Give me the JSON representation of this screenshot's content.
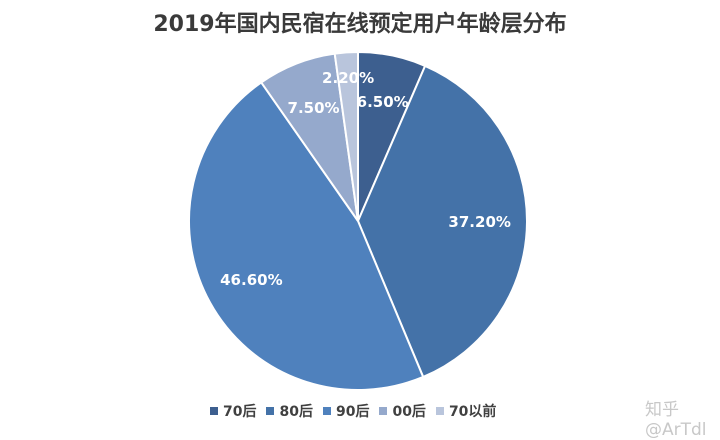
{
  "chart_data": {
    "type": "pie",
    "title": "2019年国内民宿在线预定用户年龄层分布",
    "categories": [
      "70后",
      "80后",
      "90后",
      "00后",
      "70以前"
    ],
    "values": [
      6.5,
      37.2,
      46.6,
      7.5,
      2.2
    ],
    "labels": [
      "6.50%",
      "37.20%",
      "46.60%",
      "7.50%",
      "2.20%"
    ],
    "colors": [
      "#3d5f8f",
      "#4472a8",
      "#4f81bd",
      "#95a9cc",
      "#b9c5dc"
    ],
    "start_angle": "12 o'clock, clockwise",
    "legend_position": "bottom"
  },
  "watermark": "知乎 @ArTdl"
}
